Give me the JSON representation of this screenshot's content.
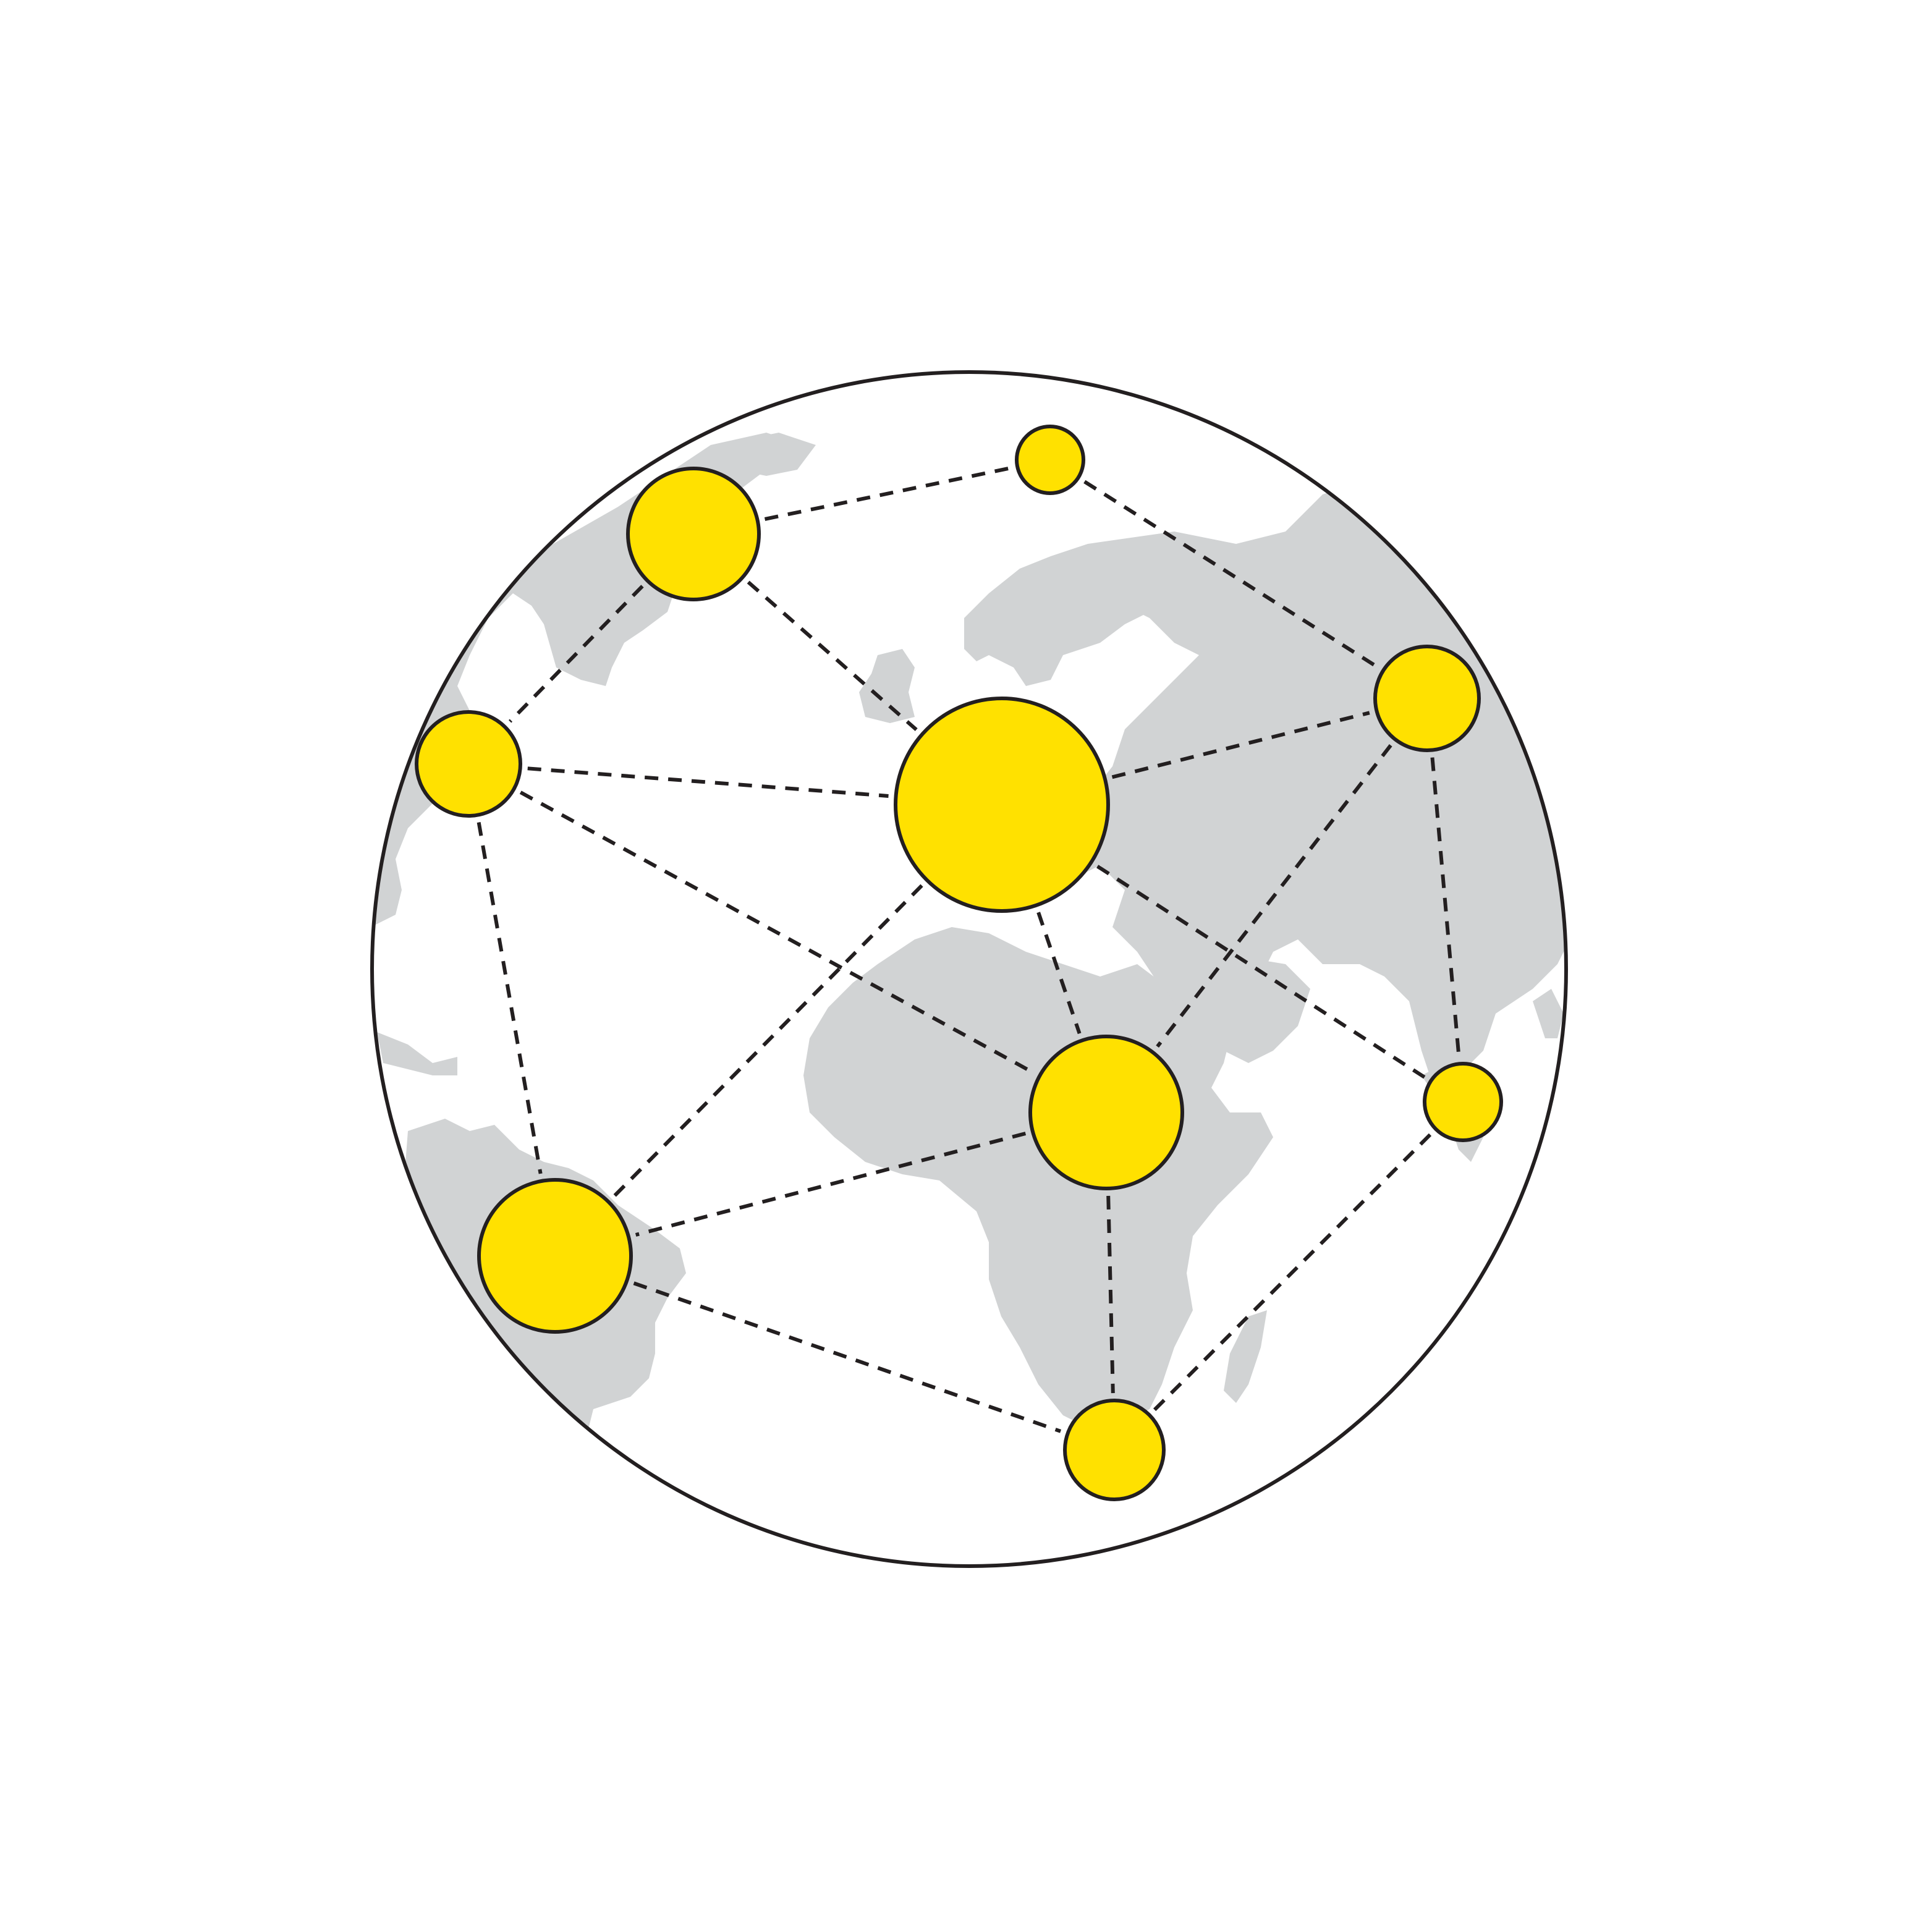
{
  "illustration": {
    "subject": "globe-network",
    "colors": {
      "background": "#ffffff",
      "globe_outline": "#231f20",
      "landmass": "#d1d3d4",
      "node_fill": "#ffe100",
      "node_stroke": "#231f20",
      "connection": "#231f20"
    },
    "nodes": [
      {
        "id": "north-america-north",
        "size": "medium"
      },
      {
        "id": "greenland",
        "size": "small"
      },
      {
        "id": "north-america-west",
        "size": "medium"
      },
      {
        "id": "europe",
        "size": "large"
      },
      {
        "id": "asia",
        "size": "medium"
      },
      {
        "id": "africa",
        "size": "medium-large"
      },
      {
        "id": "south-america",
        "size": "medium-large"
      },
      {
        "id": "south-africa",
        "size": "medium"
      },
      {
        "id": "southeast-asia",
        "size": "small"
      }
    ],
    "connections": [
      [
        "north-america-north",
        "greenland"
      ],
      [
        "greenland",
        "asia"
      ],
      [
        "north-america-north",
        "north-america-west"
      ],
      [
        "north-america-north",
        "europe"
      ],
      [
        "north-america-west",
        "europe"
      ],
      [
        "north-america-west",
        "africa"
      ],
      [
        "north-america-west",
        "south-america"
      ],
      [
        "europe",
        "asia"
      ],
      [
        "europe",
        "africa"
      ],
      [
        "europe",
        "south-america"
      ],
      [
        "europe",
        "southeast-asia"
      ],
      [
        "asia",
        "africa"
      ],
      [
        "asia",
        "southeast-asia"
      ],
      [
        "africa",
        "south-america"
      ],
      [
        "africa",
        "south-africa"
      ],
      [
        "south-america",
        "south-africa"
      ],
      [
        "south-africa",
        "southeast-asia"
      ]
    ]
  }
}
